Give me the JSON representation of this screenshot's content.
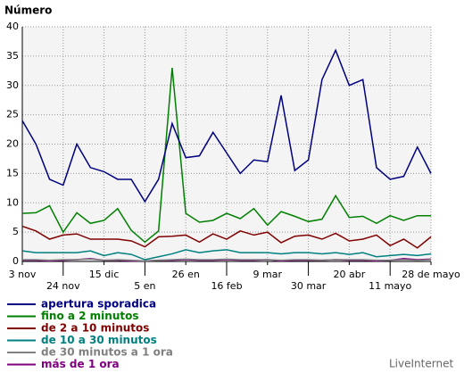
{
  "chart_data": {
    "type": "line",
    "title": "Número",
    "categories": [
      "3 nov",
      null,
      null,
      "24 nov",
      null,
      null,
      "15 dic",
      null,
      null,
      "5 en",
      null,
      null,
      "26 en",
      null,
      null,
      "16 feb",
      null,
      null,
      "9 mar",
      null,
      null,
      "30 mar",
      null,
      null,
      "20 abr",
      null,
      null,
      "11 mayo",
      null,
      null,
      "28 de mayo"
    ],
    "series": [
      {
        "name": "apertura sporadica",
        "color": "#000080",
        "values": [
          24,
          20,
          14,
          13,
          20,
          16,
          15.3,
          14,
          14,
          10.2,
          14,
          23.5,
          17.7,
          18,
          22,
          18.5,
          15,
          17.3,
          17,
          28.3,
          15.5,
          17.3,
          31,
          36,
          30,
          31,
          16,
          14,
          14.5,
          19.5,
          15
        ]
      },
      {
        "name": "fino a 2 minutos",
        "color": "#008000",
        "values": [
          8.2,
          8.3,
          9.5,
          5,
          8.3,
          6.5,
          7,
          9,
          5.3,
          3.3,
          5.2,
          33,
          8.2,
          6.7,
          7,
          8.2,
          7.3,
          9,
          6.2,
          8.5,
          7.7,
          6.8,
          7.2,
          11.2,
          7.5,
          7.7,
          6.5,
          7.8,
          7,
          7.8,
          7.8
        ]
      },
      {
        "name": "de 2 a 10 minutos",
        "color": "#800000",
        "values": [
          6,
          5.2,
          3.8,
          4.5,
          4.7,
          3.8,
          3.8,
          3.8,
          3.5,
          2.5,
          4.2,
          4.3,
          4.5,
          3.3,
          4.7,
          3.8,
          5.2,
          4.5,
          5,
          3.2,
          4.3,
          4.5,
          3.8,
          4.8,
          3.5,
          3.8,
          4.5,
          2.7,
          3.8,
          2.3,
          4.2
        ]
      },
      {
        "name": "de 10 a 30 minutos",
        "color": "#008080",
        "values": [
          1.8,
          1.5,
          1.5,
          1.5,
          1.5,
          1.8,
          1,
          1.5,
          1.2,
          0.3,
          0.8,
          1.3,
          2,
          1.5,
          1.8,
          2,
          1.5,
          1.5,
          1.5,
          1.3,
          1.5,
          1.5,
          1.3,
          1.5,
          1.2,
          1.5,
          0.8,
          1,
          1.2,
          1,
          1.3
        ]
      },
      {
        "name": "de 30 minutos a 1 ora",
        "color": "#808080",
        "values": [
          0.3,
          0.3,
          0.2,
          0.3,
          0.3,
          0.4,
          0.2,
          0.3,
          0.2,
          0.1,
          0.2,
          0.3,
          0.4,
          0.3,
          0.3,
          0.4,
          0.3,
          0.3,
          0.3,
          0.2,
          0.3,
          0.3,
          0.2,
          0.3,
          0.3,
          0.3,
          0.2,
          0.2,
          0.3,
          0.2,
          0.3
        ]
      },
      {
        "name": "más de 1 ora",
        "color": "#800080",
        "values": [
          0.2,
          0.2,
          0.1,
          0.2,
          0.3,
          0.5,
          0.2,
          0.2,
          0.1,
          0.1,
          0.2,
          0.2,
          0.3,
          0.2,
          0.2,
          0.3,
          0.2,
          0.2,
          0.3,
          0.1,
          0.2,
          0.2,
          0.2,
          0.3,
          0.2,
          0.2,
          0.1,
          0.2,
          0.5,
          0.3,
          0.4
        ]
      }
    ],
    "ylim": [
      0,
      40
    ],
    "yticks": [
      0,
      5,
      10,
      15,
      20,
      25,
      30,
      35,
      40
    ],
    "grid": true,
    "watermark": "LiveInternet"
  }
}
